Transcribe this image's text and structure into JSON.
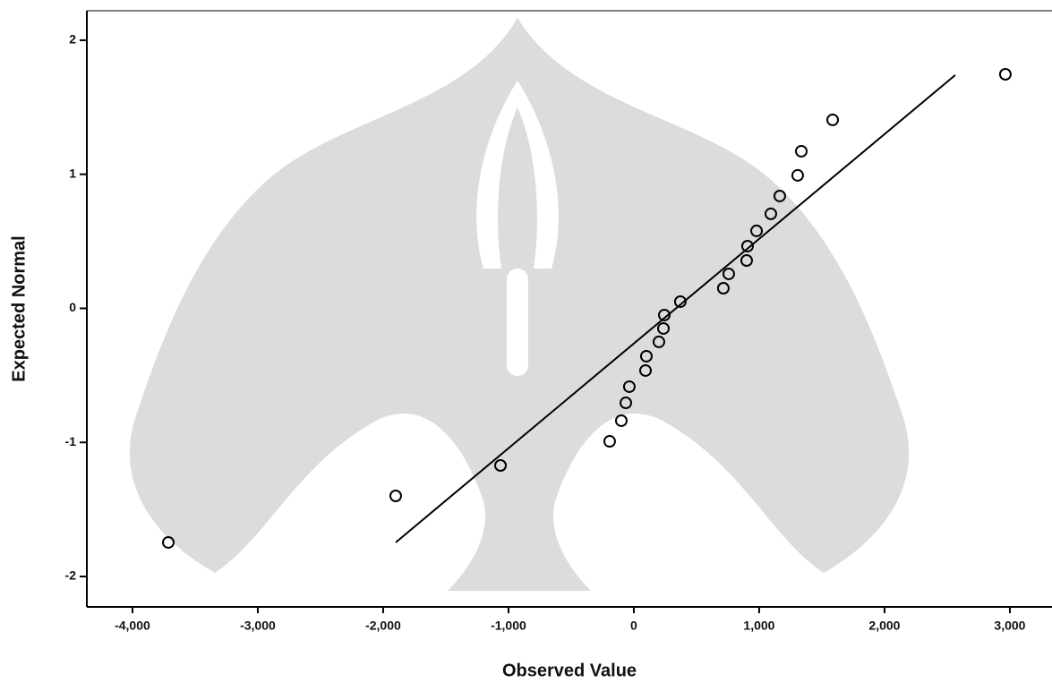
{
  "chart_data": {
    "type": "scatter",
    "x_label": "Observed Value",
    "y_label": "Expected Normal",
    "x": [
      -3714,
      -1900,
      -1064,
      -193,
      -100,
      -64,
      -36,
      93,
      100,
      200,
      236,
      243,
      371,
      714,
      757,
      900,
      907,
      979,
      1093,
      1164,
      1307,
      1336,
      1586,
      2964
    ],
    "values": [
      -1.746,
      -1.399,
      -1.172,
      -0.992,
      -0.838,
      -0.705,
      -0.584,
      -0.464,
      -0.357,
      -0.25,
      -0.15,
      -0.05,
      0.05,
      0.15,
      0.257,
      0.357,
      0.464,
      0.578,
      0.705,
      0.838,
      0.992,
      1.172,
      1.406,
      1.746
    ],
    "color": "#000000",
    "reference_line": {
      "x": [
        -1900,
        2564
      ],
      "y": [
        -1.746,
        1.74
      ]
    },
    "xlim": [
      -4364,
      3336
    ],
    "ylim": [
      -2.227,
      2.22
    ],
    "xticks": [
      {
        "value": -4000,
        "label": "-4,000"
      },
      {
        "value": -3000,
        "label": "-3,000"
      },
      {
        "value": -2000,
        "label": "-2,000"
      },
      {
        "value": -1000,
        "label": "-1,000"
      },
      0,
      {
        "value": 1000,
        "label": "1,000"
      },
      {
        "value": 2000,
        "label": "2,000"
      },
      {
        "value": 3000,
        "label": "3,000"
      }
    ],
    "yticks": [
      -2,
      -1,
      0,
      1,
      2
    ]
  }
}
